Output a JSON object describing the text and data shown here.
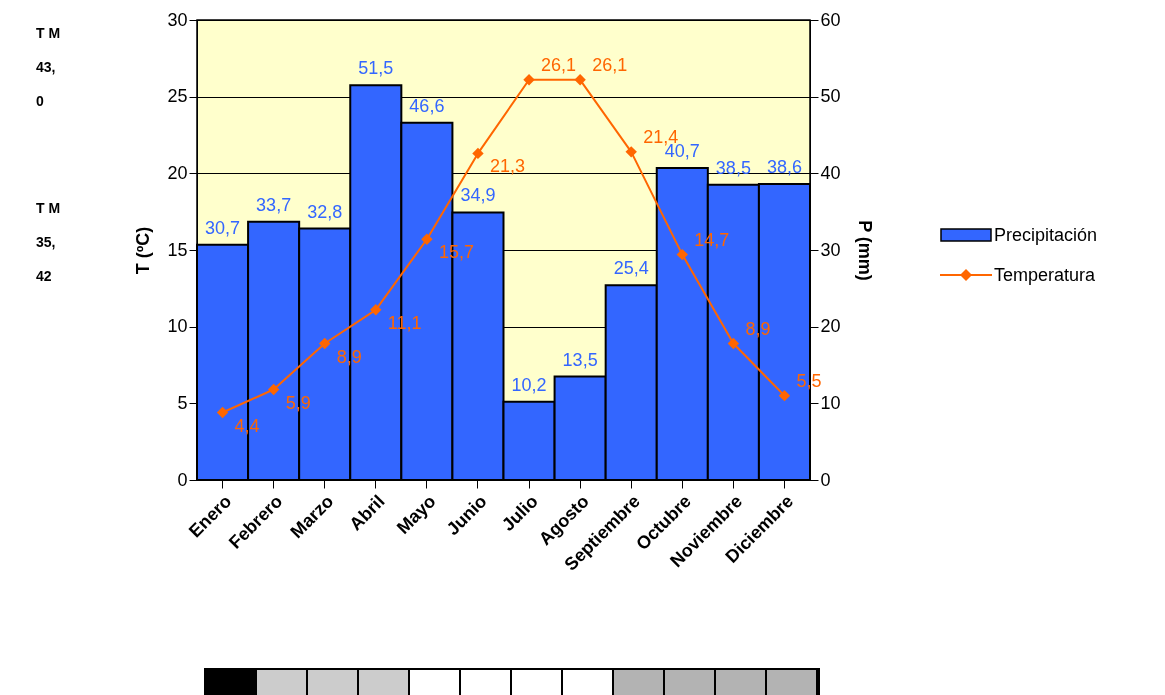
{
  "chart_data": {
    "type": "bar",
    "categories": [
      "Enero",
      "Febrero",
      "Marzo",
      "Abril",
      "Mayo",
      "Junio",
      "Julio",
      "Agosto",
      "Septiembre",
      "Octubre",
      "Noviembre",
      "Diciembre"
    ],
    "series": [
      {
        "name": "Precipitación",
        "axis": "y2",
        "color": "#3366ff",
        "values": [
          30.7,
          33.7,
          32.8,
          51.5,
          46.6,
          34.9,
          10.2,
          13.5,
          25.4,
          40.7,
          38.5,
          38.6
        ],
        "value_labels": [
          "30,7",
          "33,7",
          "32,8",
          "51,5",
          "46,6",
          "34,9",
          "10,2",
          "13,5",
          "25,4",
          "40,7",
          "38,5",
          "38,6"
        ]
      },
      {
        "name": "Temperatura",
        "type": "line",
        "color": "#ff6600",
        "values": [
          4.4,
          5.9,
          8.9,
          11.1,
          15.7,
          21.3,
          26.1,
          26.1,
          21.4,
          14.7,
          8.9,
          5.5
        ],
        "value_labels": [
          "4,4",
          "5,9",
          "8,9",
          "11,1",
          "15,7",
          "21,3",
          "26,1",
          "26,1",
          "21,4",
          "14,7",
          "8,9",
          "5,5"
        ]
      }
    ],
    "ylabel": "T (ºC)",
    "y2label": "P (mm)",
    "ylim": [
      0,
      30
    ],
    "yticks": [
      0,
      5,
      10,
      15,
      20,
      25,
      30
    ],
    "y2lim": [
      0,
      60
    ],
    "y2ticks": [
      0,
      10,
      20,
      30,
      40,
      50,
      60
    ],
    "grid": "y",
    "legend": "right",
    "marker": "diamond",
    "annotations": [
      "T M 43,0",
      "T M 35,42"
    ]
  }
}
